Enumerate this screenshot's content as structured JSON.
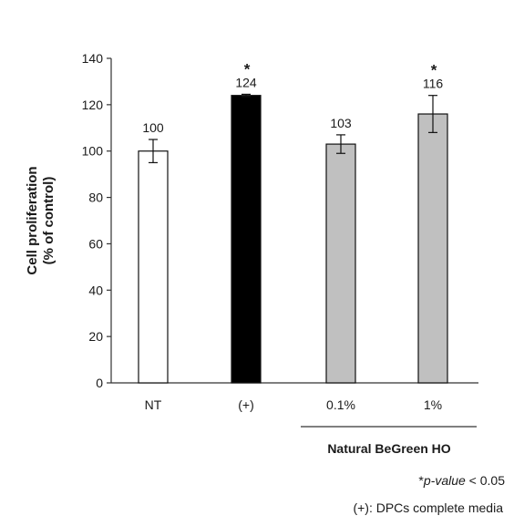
{
  "chart_data": {
    "type": "bar",
    "title": "",
    "ylabel_lines": [
      "Cell proliferation",
      "(% of control)"
    ],
    "xlabel": "",
    "categories": [
      "NT",
      "(+)",
      "0.1%",
      "1%"
    ],
    "values": [
      100,
      124,
      103,
      116
    ],
    "errors": [
      5,
      0.5,
      4,
      8
    ],
    "value_labels": [
      "100",
      "124",
      "103",
      "116"
    ],
    "significance": [
      "",
      "*",
      "",
      "*"
    ],
    "bar_colors": [
      "#ffffff",
      "#000000",
      "#c0c0c0",
      "#c0c0c0"
    ],
    "ylim": [
      0,
      140
    ],
    "yticks": [
      0,
      20,
      40,
      60,
      80,
      100,
      120,
      140
    ],
    "grid": false,
    "group_label": "Natural BeGreen HO",
    "group_categories": [
      "0.1%",
      "1%"
    ]
  },
  "notes": {
    "pvalue_prefix": "*",
    "pvalue_italic": "p-value",
    "pvalue_suffix": " < 0.05",
    "positive_control": "(+): DPCs complete media"
  }
}
